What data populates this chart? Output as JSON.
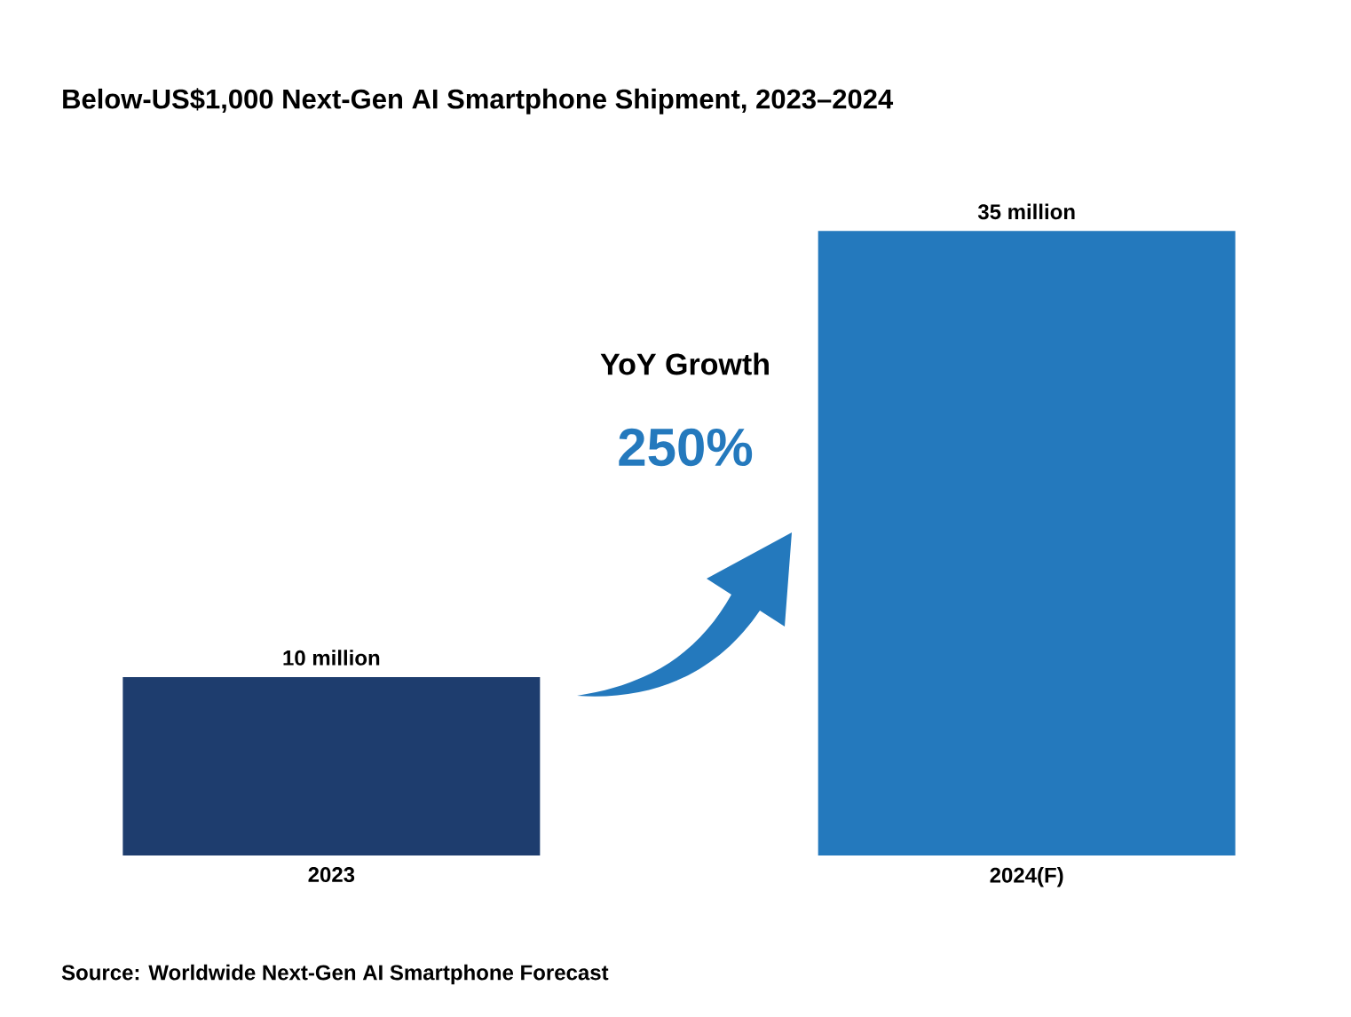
{
  "chart_data": {
    "type": "bar",
    "title": "Below-US$1,000 Next-Gen AI Smartphone Shipment, 2023–2024",
    "categories": [
      "2023",
      "2024(F)"
    ],
    "values": [
      10,
      35
    ],
    "colors": [
      "#1e3d6e",
      "#2479bd"
    ],
    "value_labels": [
      "10 million",
      "35 million"
    ],
    "annotations": [
      "YoY Growth",
      "250%",
      "Source: Worldwide Next-Gen AI Smartphone Forecast"
    ]
  }
}
